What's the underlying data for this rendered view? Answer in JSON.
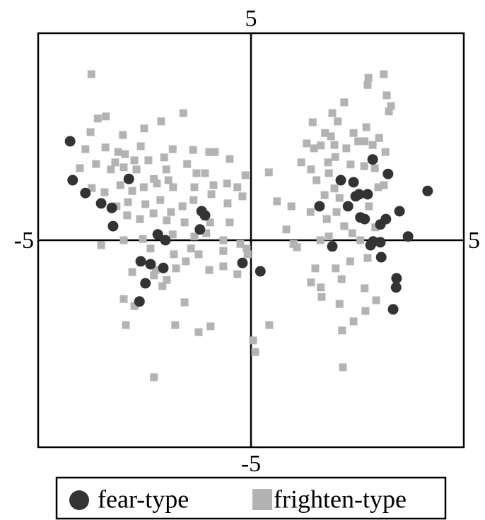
{
  "chart_data": {
    "type": "scatter",
    "xlim": [
      -5,
      5
    ],
    "ylim": [
      -5,
      5
    ],
    "xticks": [
      -5,
      5
    ],
    "yticks": [
      -5,
      5
    ],
    "series": [
      {
        "name": "fear-type",
        "color": "#333333",
        "marker": "circle",
        "x": [
          -4.25,
          -4.19,
          -3.89,
          -3.52,
          -3.27,
          -3.24,
          -2.87,
          -2.19,
          -2.01,
          -2.59,
          -2.36,
          -2.06,
          -2.48,
          -2.62,
          -1.16,
          -1.08,
          -1.2,
          -0.2,
          0.22,
          1.61,
          1.91,
          2.11,
          2.28,
          2.46,
          2.54,
          2.74,
          2.41,
          2.86,
          3.22,
          2.57,
          2.67,
          3.04,
          3.17,
          3.49,
          2.81,
          2.87,
          3.04,
          3.06,
          3.69,
          4.15,
          3.42,
          3.41,
          3.34
        ],
        "values": [
          2.39,
          1.45,
          1.14,
          0.89,
          0.78,
          0.34,
          1.48,
          0.14,
          0,
          -0.51,
          -0.58,
          -0.67,
          -1.04,
          -1.48,
          0.7,
          0.6,
          0.26,
          -0.55,
          -0.75,
          0.82,
          -0.15,
          1.45,
          0.82,
          1.06,
          1.11,
          1.11,
          1.4,
          1.95,
          1.6,
          0.55,
          0.51,
          0.38,
          0.51,
          0.7,
          -0.12,
          -0.03,
          -0.05,
          -0.41,
          0.09,
          1.19,
          -0.92,
          -1.14,
          -1.67
        ]
      },
      {
        "name": "frighten-type",
        "color": "#b3b3b3",
        "marker": "square",
        "x": [
          -3.75,
          -3.41,
          -3.6,
          -3.77,
          -3.01,
          -2.51,
          -1.59,
          -2.11,
          -3.89,
          -3.42,
          -3.12,
          -2.96,
          -2.59,
          -2.74,
          -2.41,
          -2.04,
          -1.84,
          -1.36,
          -0.98,
          -0.85,
          -4.02,
          -3.64,
          -3.29,
          -3.19,
          -2.99,
          -2.69,
          -2.28,
          -1.99,
          -1.94,
          -1.83,
          -1.5,
          -1.28,
          -1.08,
          -0.5,
          -0.13,
          0.42,
          -3.74,
          -3.44,
          -3.07,
          -2.79,
          -2.52,
          -2.21,
          -1.33,
          -0.88,
          -0.56,
          -0.32,
          -3.16,
          -2.89,
          -2.48,
          -2.13,
          -1.88,
          -1.61,
          -1.35,
          -0.93,
          -0.55,
          -0.2,
          -2.91,
          -2.61,
          -2.29,
          -1.98,
          -1.56,
          -0.96,
          -0.5,
          -3.52,
          -2.99,
          -2.54,
          -2.36,
          -1.84,
          -1.33,
          -1.05,
          -0.65,
          -0.25,
          -0.1,
          -2.24,
          -1.98,
          -1.76,
          -1.53,
          -1.23,
          -0.98,
          -0.65,
          -0.32,
          -0.08,
          -2.79,
          -2.28,
          -2.08,
          -1.56,
          -2.99,
          -2.74,
          -2.94,
          -1.78,
          -1.23,
          -0.95,
          -2.28,
          0.05,
          0.1,
          0.43,
          -0.65,
          -1.41,
          -1.81,
          2.76,
          3.12,
          2.74,
          3.19,
          3.24,
          3.29,
          2.19,
          1.45,
          1.91,
          2.04,
          2.41,
          2.71,
          2.67,
          2.86,
          2.52,
          1.74,
          1.48,
          1.31,
          1.64,
          1.88,
          1.96,
          2.24,
          3.01,
          3.16,
          1.81,
          1.98,
          2.34,
          2.66,
          1.18,
          1.41,
          1.83,
          1.96,
          1.54,
          1.73,
          2.91,
          3.12,
          2.99,
          0.61,
          0.95,
          0.83,
          1.4,
          1.78,
          2.01,
          2.08,
          2.77,
          2.19,
          1.63,
          1.08,
          1.83,
          2.38,
          2.57,
          2.92,
          1.51,
          1.41,
          1.64,
          1.99,
          2.13,
          2.33,
          2.74,
          2.67,
          2.94,
          2.08,
          2.14,
          2.16,
          2.69,
          2.41,
          1.66,
          1.0
        ],
        "values": [
          4.01,
          2.99,
          2.94,
          2.61,
          2.54,
          2.7,
          3.07,
          2.87,
          2.2,
          2.24,
          2.13,
          2.08,
          2.27,
          1.93,
          1.93,
          2.0,
          2.2,
          2.18,
          2.13,
          2.13,
          1.74,
          1.84,
          1.71,
          1.88,
          1.76,
          1.71,
          1.48,
          1.71,
          1.45,
          1.28,
          1.84,
          1.62,
          1.62,
          1.96,
          1.57,
          1.64,
          1.26,
          1.16,
          1.33,
          1.19,
          1.28,
          1.37,
          1.28,
          1.33,
          1.37,
          1.28,
          0.82,
          0.92,
          0.87,
          0.97,
          0.68,
          0.82,
          0.97,
          1.11,
          0.89,
          1.06,
          0.6,
          0.51,
          0.65,
          0.48,
          0.43,
          0.43,
          0.43,
          -0.12,
          0,
          0.03,
          -0.2,
          0.14,
          0.09,
          0.17,
          0,
          -0.09,
          -0.2,
          -0.72,
          -0.96,
          -0.68,
          -0.51,
          -0.34,
          -0.72,
          -0.63,
          -0.82,
          -0.34,
          -0.77,
          -0.85,
          -1.11,
          -1.5,
          -1.42,
          -1.59,
          -2.05,
          -2.05,
          -2.22,
          -2.08,
          -3.31,
          -2.42,
          -2.7,
          -2.05,
          -0.26,
          -0.2,
          -0.34,
          3.92,
          4.01,
          3.75,
          3.5,
          3.11,
          3.24,
          3.33,
          2.85,
          3.07,
          2.87,
          2.59,
          2.73,
          2.39,
          2.3,
          2.39,
          2.59,
          2.22,
          2.34,
          2.29,
          2.51,
          2.3,
          2.22,
          2.47,
          2.13,
          1.88,
          2.01,
          1.83,
          1.79,
          1.88,
          1.71,
          1.62,
          1.25,
          1.45,
          1.09,
          1.74,
          1.33,
          1.28,
          0.94,
          0.82,
          0.26,
          0.68,
          0.51,
          0.68,
          1.02,
          0.82,
          0.34,
          0,
          -0.17,
          0.09,
          0.17,
          0,
          0.31,
          -0.68,
          -1.02,
          -1.14,
          -0.68,
          -0.94,
          -0.51,
          -0.43,
          -1.16,
          -1.45,
          -1.54,
          -2.18,
          -3.07,
          -1.71,
          -1.96,
          -1.37,
          -0.09
        ]
      }
    ]
  }
}
